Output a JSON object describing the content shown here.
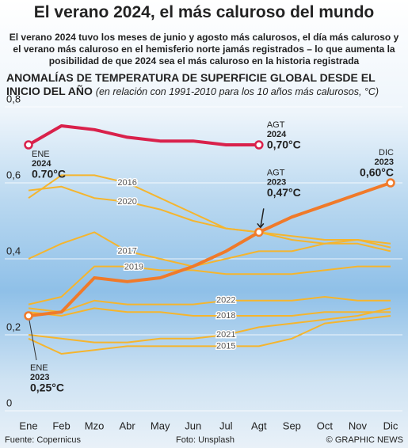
{
  "chart_data": {
    "type": "line",
    "title": "El verano 2024, el más caluroso del mundo",
    "subtitle": "El verano 2024 tuvo los meses de junio y agosto más calurosos, el día más caluroso y el verano más caluroso en el hemisferio norte jamás registrados – lo que aumenta la posibilidad de que 2024 sea el más caluroso en la historia registrada",
    "heading": "ANOMALÍAS DE TEMPERATURA DE SUPERFICIE GLOBAL DESDE EL INICIO DEL AÑO",
    "note": "(en relación con 1991-2010 para los 10 años más calurosos, °C)",
    "categories": [
      "Ene",
      "Feb",
      "Mzo",
      "Abr",
      "May",
      "Jun",
      "Jul",
      "Agt",
      "Sep",
      "Oct",
      "Nov",
      "Dic"
    ],
    "ylim": [
      0,
      0.8
    ],
    "yticks": [
      0,
      {
        "value": 0.2,
        "label": "0,2"
      },
      {
        "value": 0.4,
        "label": "0,4"
      },
      {
        "value": 0.6,
        "label": "0,6"
      },
      {
        "value": 0.8,
        "label": "0,8"
      }
    ],
    "grid": true,
    "series": [
      {
        "name": "2015",
        "color": "#f5b52e",
        "values": [
          0.19,
          0.15,
          0.16,
          0.17,
          0.17,
          0.17,
          0.17,
          0.17,
          0.19,
          0.23,
          0.24,
          0.25
        ]
      },
      {
        "name": "2021",
        "color": "#f5b52e",
        "values": [
          0.2,
          0.19,
          0.18,
          0.18,
          0.19,
          0.19,
          0.2,
          0.22,
          0.23,
          0.24,
          0.25,
          0.27
        ]
      },
      {
        "name": "2018",
        "color": "#f5b52e",
        "values": [
          0.26,
          0.25,
          0.27,
          0.26,
          0.26,
          0.25,
          0.25,
          0.25,
          0.25,
          0.26,
          0.26,
          0.26
        ]
      },
      {
        "name": "2022",
        "color": "#f5b52e",
        "values": [
          0.27,
          0.26,
          0.29,
          0.28,
          0.28,
          0.28,
          0.29,
          0.29,
          0.29,
          0.3,
          0.29,
          0.29
        ]
      },
      {
        "name": "2019",
        "color": "#f5b52e",
        "values": [
          0.28,
          0.3,
          0.38,
          0.38,
          0.37,
          0.37,
          0.36,
          0.36,
          0.36,
          0.37,
          0.38,
          0.38
        ]
      },
      {
        "name": "2017",
        "color": "#f5b52e",
        "values": [
          0.4,
          0.44,
          0.47,
          0.42,
          0.4,
          0.38,
          0.4,
          0.42,
          0.42,
          0.44,
          0.44,
          0.42
        ]
      },
      {
        "name": "2020",
        "color": "#f5b52e",
        "values": [
          0.58,
          0.59,
          0.56,
          0.55,
          0.53,
          0.5,
          0.48,
          0.47,
          0.45,
          0.44,
          0.45,
          0.44
        ]
      },
      {
        "name": "2016",
        "color": "#f5b52e",
        "values": [
          0.56,
          0.62,
          0.62,
          0.6,
          0.56,
          0.52,
          0.48,
          0.47,
          0.46,
          0.45,
          0.45,
          0.43
        ]
      },
      {
        "name": "2023",
        "color": "#f07a2a",
        "values": [
          0.25,
          0.26,
          0.35,
          0.34,
          0.35,
          0.38,
          0.42,
          0.47,
          0.51,
          0.54,
          0.57,
          0.6
        ],
        "point_labels": [
          "ENE",
          null,
          null,
          null,
          null,
          null,
          null,
          "AGT",
          null,
          null,
          null,
          "DIC"
        ],
        "value_labels": [
          "0,25°C",
          null,
          null,
          null,
          null,
          null,
          null,
          "0,47°C",
          null,
          null,
          null,
          "0,60°C"
        ]
      },
      {
        "name": "2024",
        "color": "#d9214b",
        "values": [
          0.7,
          0.75,
          0.74,
          0.72,
          0.71,
          0.71,
          0.7,
          0.7,
          null,
          null,
          null,
          null
        ],
        "point_labels": [
          "ENE",
          null,
          null,
          null,
          null,
          null,
          null,
          "AGT",
          null,
          null,
          null,
          null
        ],
        "value_labels": [
          "0.70°C",
          null,
          null,
          null,
          null,
          null,
          null,
          "0,70°C",
          null,
          null,
          null,
          null
        ]
      }
    ],
    "source": "Fuente: Copernicus",
    "photo": "Foto: Unsplash",
    "credit": "© GRAPHIC NEWS"
  }
}
